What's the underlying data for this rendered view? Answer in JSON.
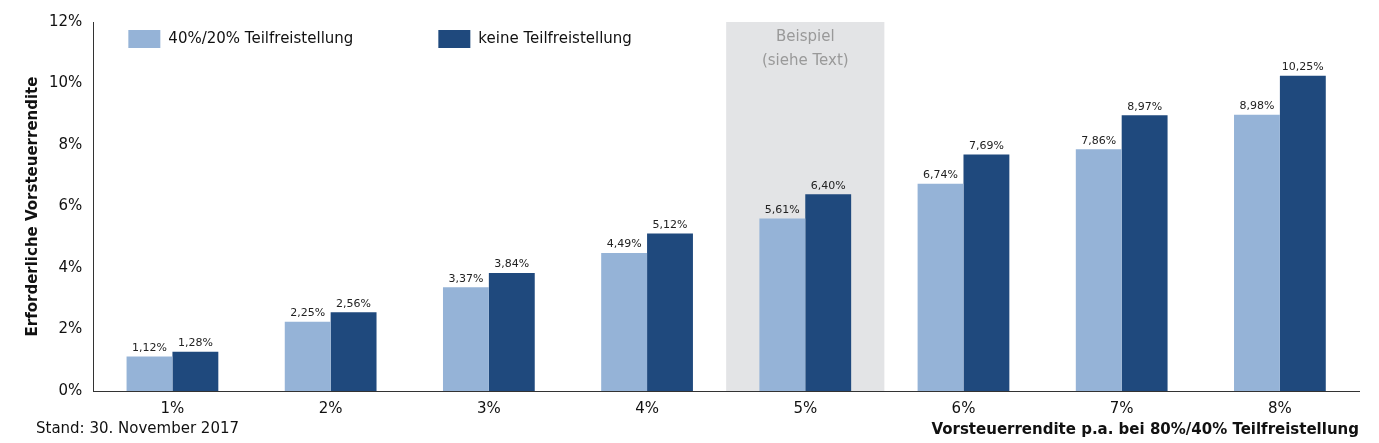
{
  "chart_data": {
    "type": "bar",
    "ylabel": "Erforderliche Vorsteuerrendite",
    "xlabel": "Vorsteuerrendite p.a. bei 80%/40% Teilfreistellung",
    "categories": [
      "1%",
      "2%",
      "3%",
      "4%",
      "5%",
      "6%",
      "7%",
      "8%"
    ],
    "series": [
      {
        "name": "40%/20% Teilfreistellung",
        "color": "#95b3d7",
        "values": [
          1.12,
          2.25,
          3.37,
          4.49,
          5.61,
          6.74,
          7.86,
          8.98
        ],
        "value_labels": [
          "1,12%",
          "2,25%",
          "3,37%",
          "4,49%",
          "5,61%",
          "6,74%",
          "7,86%",
          "8,98%"
        ]
      },
      {
        "name": "keine Teilfreistellung",
        "color": "#1f497d",
        "values": [
          1.28,
          2.56,
          3.84,
          5.12,
          6.4,
          7.69,
          8.97,
          10.25
        ],
        "value_labels": [
          "1,28%",
          "2,56%",
          "3,84%",
          "5,12%",
          "6,40%",
          "7,69%",
          "8,97%",
          "10,25%"
        ]
      }
    ],
    "ylim": [
      0,
      12
    ],
    "yticks": [
      {
        "value": 0,
        "label": "0%"
      },
      {
        "value": 2,
        "label": "2%"
      },
      {
        "value": 4,
        "label": "4%"
      },
      {
        "value": 6,
        "label": "6%"
      },
      {
        "value": 8,
        "label": "8%"
      },
      {
        "value": 10,
        "label": "10%"
      },
      {
        "value": 12,
        "label": "12%"
      }
    ],
    "bands": [
      {
        "axis": "x",
        "from": "5%",
        "to": "5%",
        "label": "Beispiel\n(siehe Text)",
        "color": "#e3e4e6"
      }
    ],
    "legend": "top left",
    "grid": false,
    "annotations": [
      "Stand: 30. November 2017"
    ]
  }
}
